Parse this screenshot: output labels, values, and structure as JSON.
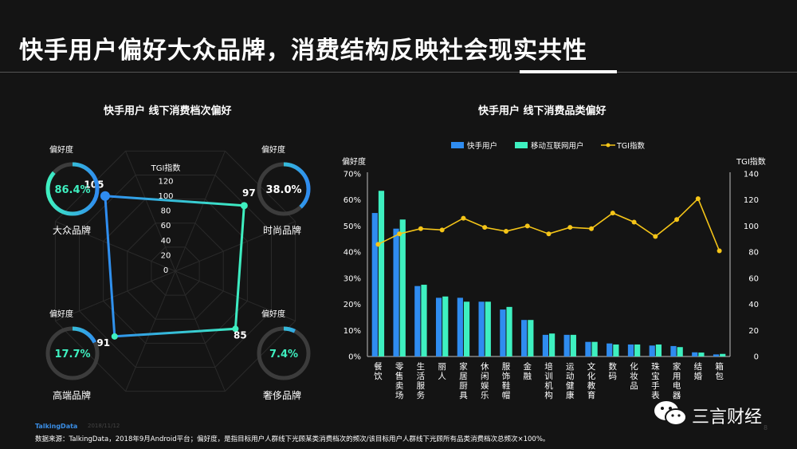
{
  "page": {
    "title": "快手用户偏好大众品牌，消费结构反映社会现实共性"
  },
  "left_panel": {
    "title": "快手用户  线下消费档次偏好",
    "radar_axis_label": "TGI指数",
    "donut_caption": "偏好度",
    "donuts": [
      {
        "name": "大众品牌",
        "percent_label": "86.4%",
        "fraction": 0.864,
        "text_color": "#3ef0c0"
      },
      {
        "name": "时尚品牌",
        "percent_label": "38.0%",
        "fraction": 0.38,
        "text_color": "#ffffff"
      },
      {
        "name": "高端品牌",
        "percent_label": "17.7%",
        "fraction": 0.177,
        "text_color": "#3ef0c0"
      },
      {
        "name": "奢侈品牌",
        "percent_label": "7.4%",
        "fraction": 0.074,
        "text_color": "#3ef0c0"
      }
    ]
  },
  "right_panel": {
    "title": "快手用户  线下消费品类偏好"
  },
  "footer": {
    "logo": "TalkingData",
    "date": "2018/11/12",
    "source": "数据来源：TalkingData，2018年9月Android平台；偏好度，是指目标用户人群线下光顾某类消费档次的频次/该目标用户人群线下光顾所有品类消费档次总频次×100%。",
    "watermark": "三言财经",
    "page_number": "8"
  },
  "colors": {
    "background": "#141414",
    "kuaishou_blue": "#2f8cf0",
    "mobile_green": "#3ef0c0",
    "tgi_yellow": "#f5c518",
    "donut_track": "#3c3c3c"
  },
  "chart_data": [
    {
      "type": "radar",
      "title": "快手用户  线下消费档次偏好",
      "axis_label": "TGI指数",
      "axis_ticks": [
        0,
        20,
        40,
        60,
        80,
        100,
        120
      ],
      "categories": [
        "大众品牌",
        "时尚品牌",
        "奢侈品牌",
        "高端品牌"
      ],
      "values": [
        105,
        97,
        85,
        91
      ]
    },
    {
      "type": "bar",
      "title": "快手用户  线下消费品类偏好",
      "ylabel": "偏好度",
      "y2label": "TGI指数",
      "ylim": [
        0,
        70
      ],
      "yticks": [
        "0%",
        "10%",
        "20%",
        "30%",
        "40%",
        "50%",
        "60%",
        "70%"
      ],
      "y2lim": [
        0,
        140
      ],
      "y2ticks": [
        0,
        20,
        40,
        60,
        80,
        100,
        120,
        140
      ],
      "legend_position": "top",
      "categories": [
        "餐饮",
        "零售卖场",
        "生活服务",
        "丽人",
        "家居厨具",
        "休闲娱乐",
        "服饰鞋帽",
        "金融",
        "培训机构",
        "运动健康",
        "文化教育",
        "数码",
        "化妆品",
        "珠宝手表",
        "家用电器",
        "结婚",
        "箱包"
      ],
      "series": [
        {
          "name": "快手用户",
          "kind": "bar",
          "color": "#2f8cf0",
          "values": [
            55,
            49,
            27,
            22.5,
            22.5,
            21,
            18,
            14,
            8.3,
            8.3,
            5.6,
            5.0,
            4.6,
            4.2,
            4.0,
            1.6,
            0.8
          ]
        },
        {
          "name": "移动互联网用户",
          "kind": "bar",
          "color": "#3ef0c0",
          "values": [
            63.5,
            52.5,
            27.5,
            23,
            21,
            21,
            19,
            14,
            8.8,
            8.3,
            5.6,
            4.6,
            4.6,
            4.6,
            3.6,
            1.5,
            1.0
          ]
        },
        {
          "name": "TGI指数",
          "kind": "line",
          "axis": "right",
          "color": "#f5c518",
          "values": [
            86,
            94,
            98,
            97,
            106,
            99,
            96,
            100,
            94,
            99,
            98,
            110,
            103,
            92,
            105,
            121,
            81
          ]
        }
      ]
    }
  ]
}
